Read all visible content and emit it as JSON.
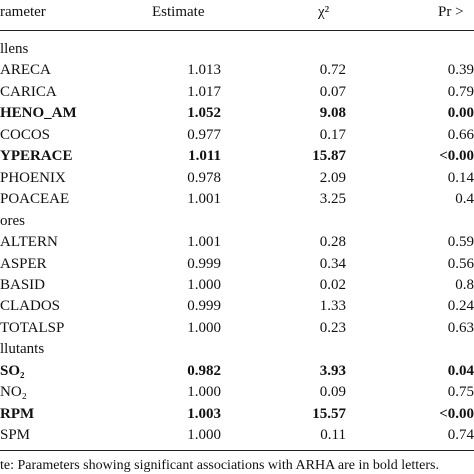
{
  "table": {
    "header": [
      "rameter",
      "Estimate",
      "χ²",
      "Pr >"
    ],
    "rows": [
      {
        "group": "llens"
      },
      {
        "cells": [
          "ARECA",
          "1.013",
          "0.72",
          "0.39"
        ],
        "bold": false
      },
      {
        "cells": [
          "CARICA",
          "1.017",
          "0.07",
          "0.79"
        ],
        "bold": false
      },
      {
        "cells": [
          "HENO_AM",
          "1.052",
          "9.08",
          "0.00"
        ],
        "bold": true
      },
      {
        "cells": [
          "COCOS",
          "0.977",
          "0.17",
          "0.66"
        ],
        "bold": false
      },
      {
        "cells": [
          "YPERACE",
          "1.011",
          "15.87",
          "<0.00"
        ],
        "bold": true
      },
      {
        "cells": [
          "PHOENIX",
          "0.978",
          "2.09",
          "0.14"
        ],
        "bold": false
      },
      {
        "cells": [
          "POACEAE",
          "1.001",
          "3.25",
          "0.4"
        ],
        "bold": false
      },
      {
        "group": "ores"
      },
      {
        "cells": [
          "ALTERN",
          "1.001",
          "0.28",
          "0.59"
        ],
        "bold": false
      },
      {
        "cells": [
          "ASPER",
          "0.999",
          "0.34",
          "0.56"
        ],
        "bold": false
      },
      {
        "cells": [
          "BASID",
          "1.000",
          "0.02",
          "0.8"
        ],
        "bold": false
      },
      {
        "cells": [
          "CLADOS",
          "0.999",
          "1.33",
          "0.24"
        ],
        "bold": false
      },
      {
        "cells": [
          "TOTALSP",
          "1.000",
          "0.23",
          "0.63"
        ],
        "bold": false
      },
      {
        "group": "llutants"
      },
      {
        "cells": [
          "SO₂",
          "0.982",
          "3.93",
          "0.04"
        ],
        "bold": true
      },
      {
        "cells": [
          "NO₂",
          "1.000",
          "0.09",
          "0.75"
        ],
        "bold": false
      },
      {
        "cells": [
          "RPM",
          "1.003",
          "15.57",
          "<0.00"
        ],
        "bold": true
      },
      {
        "cells": [
          "SPM",
          "1.000",
          "0.11",
          "0.74"
        ],
        "bold": false
      }
    ],
    "note": "te: Parameters showing significant associations with ARHA are in bold letters."
  }
}
